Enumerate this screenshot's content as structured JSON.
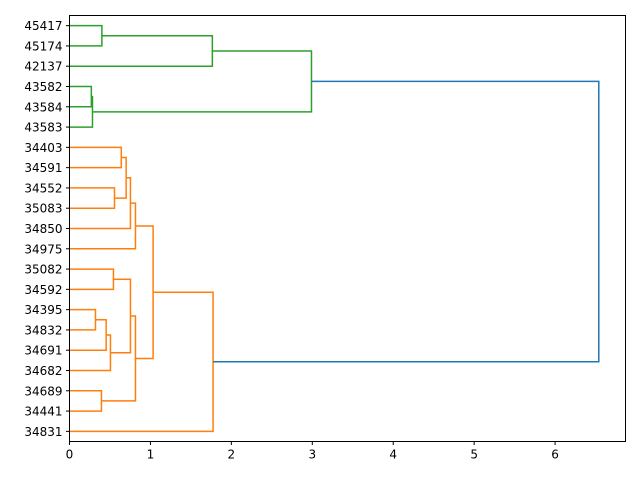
{
  "chart_data": {
    "type": "dendrogram",
    "title": "",
    "xlabel": "",
    "ylabel": "",
    "orientation": "left",
    "xlim": [
      0,
      6.87
    ],
    "xticks": [
      0,
      1,
      2,
      3,
      4,
      5,
      6
    ],
    "grid": false,
    "colors": {
      "above_threshold": "#1f77b4",
      "cluster1": "#2ca02c",
      "cluster2": "#ff7f0e"
    },
    "leaves": [
      "45417",
      "45174",
      "42137",
      "43582",
      "43584",
      "43583",
      "34403",
      "34591",
      "34552",
      "35083",
      "34850",
      "34975",
      "35082",
      "34592",
      "34395",
      "34832",
      "34691",
      "34682",
      "34689",
      "34441",
      "34831"
    ],
    "tree": {
      "h": 6.54,
      "color": "above_threshold",
      "c": [
        {
          "h": 2.99,
          "color": "cluster1",
          "c": [
            {
              "h": 1.765,
              "color": "cluster1",
              "c": [
                {
                  "h": 0.4,
                  "color": "cluster1",
                  "c": [
                    "45417",
                    "45174"
                  ]
                },
                "42137"
              ]
            },
            {
              "h": 0.284,
              "color": "cluster1",
              "c": [
                {
                  "h": 0.27,
                  "color": "cluster1",
                  "c": [
                    "43582",
                    "43584"
                  ]
                },
                "43583"
              ]
            }
          ]
        },
        {
          "h": 1.774,
          "color": "cluster2",
          "c": [
            {
              "h": 1.033,
              "color": "cluster2",
              "c": [
                {
                  "h": 0.815,
                  "color": "cluster2",
                  "c": [
                    {
                      "h": 0.753,
                      "color": "cluster2",
                      "c": [
                        {
                          "h": 0.7,
                          "color": "cluster2",
                          "c": [
                            {
                              "h": 0.64,
                              "color": "cluster2",
                              "c": [
                                "34403",
                                "34591"
                              ]
                            },
                            {
                              "h": 0.556,
                              "color": "cluster2",
                              "c": [
                                "34552",
                                "35083"
                              ]
                            }
                          ]
                        },
                        "34850"
                      ]
                    },
                    "34975"
                  ]
                },
                {
                  "h": 0.815,
                  "color": "cluster2",
                  "c": [
                    {
                      "h": 0.753,
                      "color": "cluster2",
                      "c": [
                        {
                          "h": 0.543,
                          "color": "cluster2",
                          "c": [
                            "35082",
                            "34592"
                          ]
                        },
                        {
                          "h": 0.506,
                          "color": "cluster2",
                          "c": [
                            {
                              "h": 0.453,
                              "color": "cluster2",
                              "c": [
                                {
                                  "h": 0.321,
                                  "color": "cluster2",
                                  "c": [
                                    "34395",
                                    "34832"
                                  ]
                                },
                                "34691"
                              ]
                            },
                            "34682"
                          ]
                        }
                      ]
                    },
                    {
                      "h": 0.395,
                      "color": "cluster2",
                      "c": [
                        "34689",
                        "34441"
                      ]
                    }
                  ]
                }
              ]
            },
            "34831"
          ]
        }
      ]
    }
  }
}
